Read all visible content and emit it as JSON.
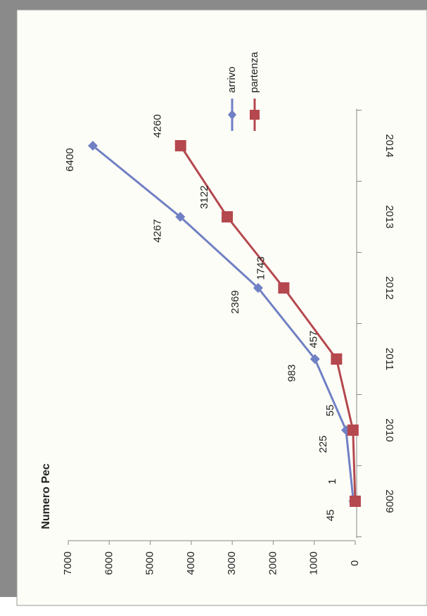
{
  "chart_data": {
    "type": "line",
    "title": "Numero Pec",
    "categories": [
      "2009",
      "2010",
      "2011",
      "2012",
      "2013",
      "2014"
    ],
    "series": [
      {
        "name": "arrivo",
        "color": "#7080c4",
        "marker": "diamond",
        "values": [
          45,
          225,
          983,
          2369,
          4267,
          6400
        ]
      },
      {
        "name": "partenza",
        "color": "#b5484e",
        "marker": "square",
        "values": [
          1,
          55,
          457,
          1743,
          3122,
          4260
        ]
      }
    ],
    "ylim": [
      0,
      7000
    ],
    "yticks": [
      0,
      1000,
      2000,
      3000,
      4000,
      5000,
      6000,
      7000
    ],
    "rotated": true
  }
}
